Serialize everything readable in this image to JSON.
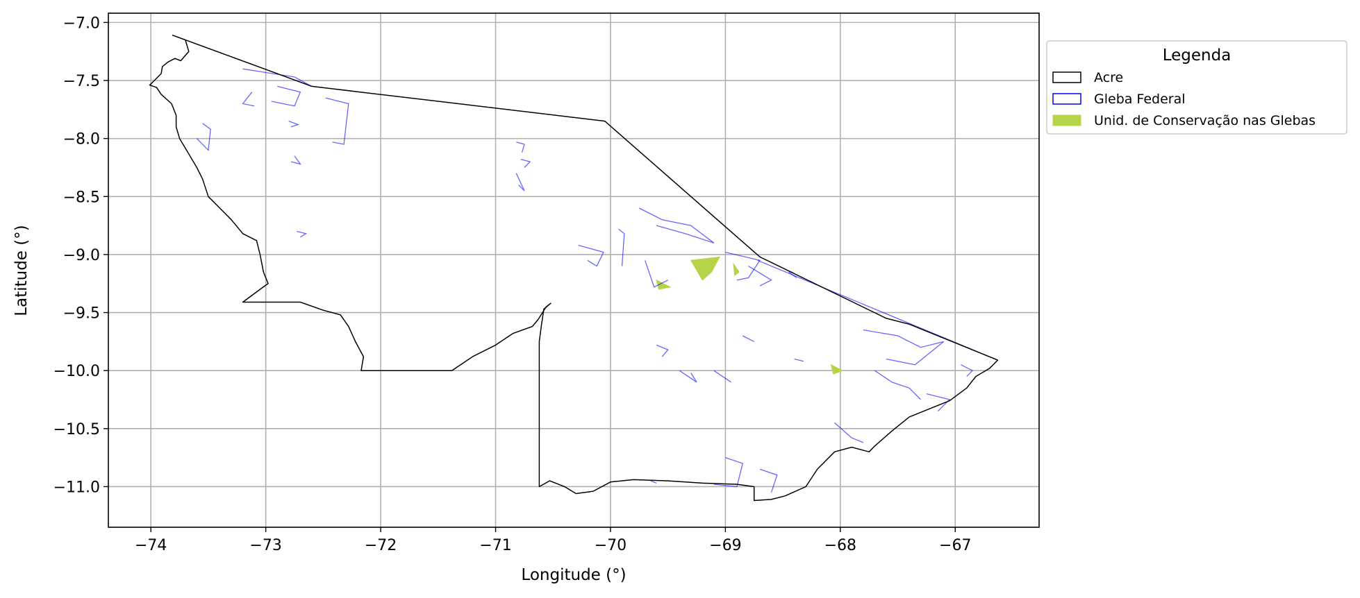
{
  "chart_data": {
    "type": "map",
    "xlabel": "Longitude (°)",
    "ylabel": "Latitude (°)",
    "xlim": [
      -74.37,
      -66.27
    ],
    "ylim": [
      -11.35,
      -6.92
    ],
    "xticks": [
      -74,
      -73,
      -72,
      -71,
      -70,
      -69,
      -68,
      -67
    ],
    "yticks": [
      -7.0,
      -7.5,
      -8.0,
      -8.5,
      -9.0,
      -9.5,
      -10.0,
      -10.5,
      -11.0
    ],
    "xtick_labels": [
      "−74",
      "−73",
      "−72",
      "−71",
      "−70",
      "−69",
      "−68",
      "−67"
    ],
    "ytick_labels": [
      "−7.0",
      "−7.5",
      "−8.0",
      "−8.5",
      "−9.0",
      "−9.5",
      "−10.0",
      "−10.5",
      "−11.0"
    ],
    "grid": true,
    "legend": {
      "title": "Legenda",
      "placement": "outside-right",
      "entries": [
        {
          "label": "Acre",
          "edge": "#000000",
          "fill": "none"
        },
        {
          "label": "Gleba Federal",
          "edge": "#0000ff",
          "fill": "none"
        },
        {
          "label": "Unid. de Conservação nas Glebas",
          "edge": "#b5d44a",
          "fill": "#b5d44a"
        }
      ]
    },
    "colors": {
      "acre": "#000000",
      "gleba": "#0000ff",
      "uc": "#b5d44a",
      "grid": "#b0b0b0"
    },
    "layers": {
      "acre": [
        [
          [
            -73.81,
            -7.11
          ],
          [
            -73.7,
            -7.15
          ],
          [
            -73.67,
            -7.25
          ],
          [
            -73.74,
            -7.33
          ],
          [
            -73.79,
            -7.31
          ],
          [
            -73.85,
            -7.34
          ],
          [
            -73.9,
            -7.38
          ],
          [
            -73.91,
            -7.44
          ],
          [
            -73.97,
            -7.5
          ],
          [
            -74.01,
            -7.54
          ],
          [
            -73.95,
            -7.56
          ],
          [
            -73.91,
            -7.62
          ],
          [
            -73.82,
            -7.7
          ],
          [
            -73.78,
            -7.8
          ],
          [
            -73.78,
            -7.9
          ],
          [
            -73.75,
            -8.0
          ],
          [
            -73.69,
            -8.1
          ],
          [
            -73.6,
            -8.25
          ],
          [
            -73.55,
            -8.35
          ],
          [
            -73.5,
            -8.5
          ],
          [
            -73.38,
            -8.62
          ],
          [
            -73.3,
            -8.7
          ],
          [
            -73.2,
            -8.82
          ],
          [
            -73.08,
            -8.88
          ],
          [
            -73.05,
            -9.0
          ],
          [
            -73.02,
            -9.15
          ],
          [
            -72.98,
            -9.25
          ],
          [
            -73.05,
            -9.3
          ],
          [
            -73.2,
            -9.41
          ],
          [
            -72.7,
            -9.41
          ],
          [
            -72.5,
            -9.48
          ],
          [
            -72.35,
            -9.52
          ],
          [
            -72.28,
            -9.62
          ],
          [
            -72.22,
            -9.75
          ],
          [
            -72.15,
            -9.88
          ],
          [
            -72.17,
            -10.0
          ],
          [
            -71.7,
            -10.0
          ],
          [
            -71.38,
            -10.0
          ],
          [
            -71.2,
            -9.88
          ],
          [
            -71.0,
            -9.78
          ],
          [
            -70.85,
            -9.68
          ],
          [
            -70.68,
            -9.62
          ],
          [
            -70.63,
            -9.56
          ],
          [
            -70.56,
            -9.45
          ],
          [
            -70.52,
            -9.42
          ],
          [
            -70.58,
            -9.47
          ],
          [
            -70.6,
            -9.6
          ],
          [
            -70.62,
            -9.75
          ],
          [
            -70.62,
            -11.0
          ],
          [
            -70.53,
            -10.95
          ],
          [
            -70.4,
            -11.0
          ],
          [
            -70.3,
            -11.06
          ],
          [
            -70.15,
            -11.04
          ],
          [
            -70.0,
            -10.96
          ],
          [
            -69.8,
            -10.94
          ],
          [
            -69.5,
            -10.95
          ],
          [
            -69.2,
            -10.97
          ],
          [
            -68.9,
            -10.98
          ],
          [
            -68.75,
            -11.0
          ],
          [
            -68.75,
            -11.12
          ],
          [
            -68.6,
            -11.11
          ],
          [
            -68.48,
            -11.08
          ],
          [
            -68.3,
            -11.0
          ],
          [
            -68.2,
            -10.85
          ],
          [
            -68.05,
            -10.7
          ],
          [
            -67.9,
            -10.66
          ],
          [
            -67.75,
            -10.7
          ],
          [
            -67.7,
            -10.65
          ],
          [
            -67.55,
            -10.52
          ],
          [
            -67.4,
            -10.4
          ],
          [
            -67.2,
            -10.32
          ],
          [
            -67.05,
            -10.26
          ],
          [
            -66.9,
            -10.15
          ],
          [
            -66.82,
            -10.05
          ],
          [
            -66.7,
            -9.98
          ],
          [
            -66.63,
            -9.91
          ],
          [
            -67.4,
            -9.6
          ],
          [
            -67.6,
            -9.55
          ],
          [
            -68.7,
            -9.02
          ],
          [
            -70.05,
            -7.85
          ],
          [
            -72.6,
            -7.55
          ],
          [
            -73.81,
            -7.11
          ]
        ]
      ],
      "gleba": [
        [
          [
            -73.2,
            -7.4
          ],
          [
            -72.75,
            -7.47
          ],
          [
            -72.6,
            -7.55
          ],
          [
            -72.68,
            -7.52
          ]
        ],
        [
          [
            -73.12,
            -7.6
          ],
          [
            -73.2,
            -7.7
          ],
          [
            -73.1,
            -7.72
          ]
        ],
        [
          [
            -72.9,
            -7.55
          ],
          [
            -72.7,
            -7.6
          ],
          [
            -72.75,
            -7.72
          ],
          [
            -72.95,
            -7.68
          ]
        ],
        [
          [
            -72.48,
            -7.65
          ],
          [
            -72.28,
            -7.7
          ],
          [
            -72.32,
            -8.05
          ],
          [
            -72.42,
            -8.03
          ]
        ],
        [
          [
            -73.55,
            -7.87
          ],
          [
            -73.48,
            -7.92
          ],
          [
            -73.5,
            -8.1
          ],
          [
            -73.6,
            -8.0
          ]
        ],
        [
          [
            -72.8,
            -7.85
          ],
          [
            -72.72,
            -7.88
          ],
          [
            -72.78,
            -7.9
          ]
        ],
        [
          [
            -72.75,
            -8.15
          ],
          [
            -72.7,
            -8.22
          ],
          [
            -72.78,
            -8.2
          ]
        ],
        [
          [
            -70.82,
            -8.03
          ],
          [
            -70.75,
            -8.05
          ],
          [
            -70.77,
            -8.12
          ]
        ],
        [
          [
            -70.78,
            -8.18
          ],
          [
            -70.7,
            -8.2
          ],
          [
            -70.75,
            -8.25
          ]
        ],
        [
          [
            -70.82,
            -8.3
          ],
          [
            -70.75,
            -8.45
          ],
          [
            -70.8,
            -8.4
          ]
        ],
        [
          [
            -72.73,
            -8.8
          ],
          [
            -72.65,
            -8.82
          ],
          [
            -72.7,
            -8.85
          ]
        ],
        [
          [
            -69.75,
            -8.6
          ],
          [
            -69.55,
            -8.7
          ],
          [
            -69.3,
            -8.75
          ],
          [
            -69.1,
            -8.9
          ],
          [
            -69.35,
            -8.82
          ],
          [
            -69.6,
            -8.75
          ]
        ],
        [
          [
            -70.28,
            -8.92
          ],
          [
            -70.06,
            -8.98
          ],
          [
            -70.12,
            -9.1
          ],
          [
            -70.2,
            -9.05
          ]
        ],
        [
          [
            -69.93,
            -8.78
          ],
          [
            -69.88,
            -8.82
          ],
          [
            -69.9,
            -9.1
          ]
        ],
        [
          [
            -69.7,
            -9.05
          ],
          [
            -69.62,
            -9.28
          ],
          [
            -69.5,
            -9.22
          ]
        ],
        [
          [
            -69.0,
            -8.98
          ],
          [
            -68.7,
            -9.05
          ],
          [
            -68.8,
            -9.2
          ],
          [
            -68.9,
            -9.22
          ]
        ],
        [
          [
            -68.8,
            -9.1
          ],
          [
            -68.6,
            -9.22
          ],
          [
            -68.7,
            -9.27
          ]
        ],
        [
          [
            -68.72,
            -9.05
          ],
          [
            -66.63,
            -9.91
          ]
        ],
        [
          [
            -68.45,
            -9.15
          ],
          [
            -68.38,
            -9.2
          ]
        ],
        [
          [
            -67.8,
            -9.65
          ],
          [
            -67.5,
            -9.7
          ],
          [
            -67.3,
            -9.8
          ],
          [
            -67.1,
            -9.75
          ],
          [
            -67.35,
            -9.95
          ],
          [
            -67.6,
            -9.9
          ]
        ],
        [
          [
            -67.7,
            -10.0
          ],
          [
            -67.55,
            -10.1
          ],
          [
            -67.4,
            -10.15
          ],
          [
            -67.3,
            -10.25
          ]
        ],
        [
          [
            -66.95,
            -9.95
          ],
          [
            -66.85,
            -10.0
          ],
          [
            -66.9,
            -10.05
          ]
        ],
        [
          [
            -67.25,
            -10.2
          ],
          [
            -67.05,
            -10.25
          ],
          [
            -67.15,
            -10.35
          ]
        ],
        [
          [
            -68.05,
            -10.45
          ],
          [
            -67.9,
            -10.58
          ],
          [
            -67.8,
            -10.62
          ]
        ],
        [
          [
            -69.6,
            -9.78
          ],
          [
            -69.5,
            -9.82
          ],
          [
            -69.55,
            -9.88
          ]
        ],
        [
          [
            -69.4,
            -10.0
          ],
          [
            -69.25,
            -10.1
          ],
          [
            -69.3,
            -10.02
          ]
        ],
        [
          [
            -69.1,
            -10.0
          ],
          [
            -68.95,
            -10.1
          ]
        ],
        [
          [
            -68.85,
            -9.7
          ],
          [
            -68.75,
            -9.75
          ]
        ],
        [
          [
            -68.4,
            -9.9
          ],
          [
            -68.32,
            -9.92
          ]
        ],
        [
          [
            -69.0,
            -10.75
          ],
          [
            -68.85,
            -10.8
          ],
          [
            -68.9,
            -11.0
          ],
          [
            -69.1,
            -10.98
          ]
        ],
        [
          [
            -68.7,
            -10.85
          ],
          [
            -68.55,
            -10.9
          ],
          [
            -68.6,
            -11.05
          ]
        ],
        [
          [
            -69.65,
            -10.95
          ],
          [
            -69.6,
            -10.97
          ]
        ]
      ],
      "uc": [
        [
          [
            -69.6,
            -9.22
          ],
          [
            -69.48,
            -9.28
          ],
          [
            -69.58,
            -9.3
          ]
        ],
        [
          [
            -69.3,
            -9.05
          ],
          [
            -69.05,
            -9.02
          ],
          [
            -69.12,
            -9.15
          ],
          [
            -69.2,
            -9.22
          ]
        ],
        [
          [
            -68.93,
            -9.08
          ],
          [
            -68.88,
            -9.15
          ],
          [
            -68.92,
            -9.18
          ]
        ],
        [
          [
            -68.08,
            -9.95
          ],
          [
            -67.98,
            -10.0
          ],
          [
            -68.06,
            -10.03
          ]
        ]
      ]
    }
  }
}
